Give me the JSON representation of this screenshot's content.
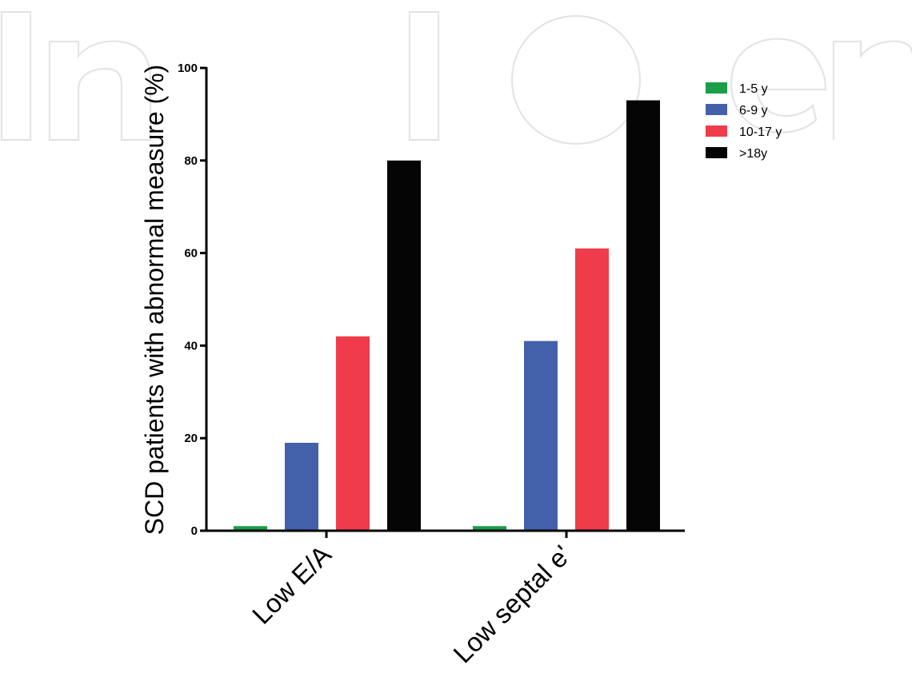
{
  "chart_data": {
    "type": "bar",
    "title": "",
    "xlabel": "",
    "ylabel": "SCD patients with abnormal measure (%)",
    "ylim": [
      0,
      100
    ],
    "yticks": [
      0,
      20,
      40,
      60,
      80,
      100
    ],
    "categories": [
      "Low E/A",
      "Low septal e'"
    ],
    "series": [
      {
        "name": "1-5 y",
        "color": "#1a9e48",
        "values": [
          1,
          1
        ]
      },
      {
        "name": "6-9 y",
        "color": "#4361ab",
        "values": [
          19,
          41
        ]
      },
      {
        "name": "10-17 y",
        "color": "#ef3b4a",
        "values": [
          42,
          61
        ]
      },
      {
        "name": ">18y",
        "color": "#050505",
        "values": [
          80,
          93
        ]
      }
    ],
    "legend_position": "top-right",
    "grid": false
  }
}
